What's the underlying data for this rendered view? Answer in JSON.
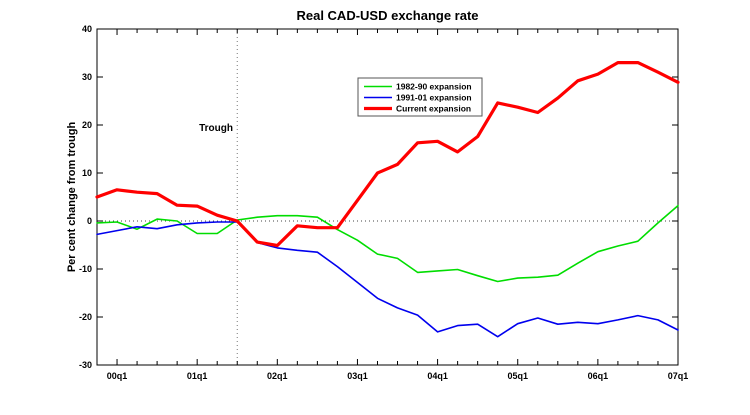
{
  "title": "Real CAD-USD exchange rate",
  "ylabel": "Per cent change from trough",
  "annotations": {
    "trough_label": "Trough",
    "trough_x": "01q3",
    "zero_line": 0
  },
  "colors": {
    "axis": "#000000",
    "background": "#ffffff",
    "green_series": "#00dd00",
    "blue_series": "#0000ee",
    "red_series": "#ff0000",
    "dotted_h": "#444444",
    "dotted_v": "#777777",
    "legend_border": "#555555"
  },
  "legend": {
    "labels": [
      "1982-90 expansion",
      "1991-01 expansion",
      "Current expansion"
    ]
  },
  "chart_data": {
    "type": "line",
    "title": "Real CAD-USD exchange rate",
    "xlabel": "",
    "ylabel": "Per cent change from trough",
    "ylim": [
      -30,
      40
    ],
    "y_ticks": [
      40,
      30,
      20,
      10,
      0,
      -10,
      -20,
      -30
    ],
    "x": [
      "99q4",
      "00q1",
      "00q2",
      "00q3",
      "00q4",
      "01q1",
      "01q2",
      "01q3",
      "01q4",
      "02q1",
      "02q2",
      "02q3",
      "02q4",
      "03q1",
      "03q2",
      "03q3",
      "03q4",
      "04q1",
      "04q2",
      "04q3",
      "04q4",
      "05q1",
      "05q2",
      "05q3",
      "05q4",
      "06q1",
      "06q2",
      "06q3",
      "06q4",
      "07q1"
    ],
    "x_tick_labels": [
      "00q1",
      "01q1",
      "02q1",
      "03q1",
      "04q1",
      "05q1",
      "06q1",
      "07q1"
    ],
    "x_tick_indices": [
      1,
      5,
      9,
      13,
      17,
      21,
      25,
      29
    ],
    "grid": "off",
    "legend_position": "upper-center-left",
    "trough_index": 7,
    "series": [
      {
        "name": "1982-90 expansion",
        "color": "#00dd00",
        "width": 1.6,
        "values": [
          -0.4,
          -0.2,
          -1.7,
          0.4,
          0.0,
          -2.6,
          -2.6,
          0.2,
          0.8,
          1.1,
          1.1,
          0.8,
          -1.8,
          -4.0,
          -6.9,
          -7.8,
          -10.7,
          -10.4,
          -10.1,
          -11.4,
          -12.6,
          -11.9,
          -11.7,
          -11.3,
          -8.8,
          -6.4,
          -5.2,
          -4.2,
          -0.4,
          3.2
        ]
      },
      {
        "name": "1991-01 expansion",
        "color": "#0000ee",
        "width": 1.6,
        "values": [
          -2.8,
          -2.0,
          -1.2,
          -1.6,
          -0.8,
          -0.4,
          -0.2,
          -0.2,
          -4.5,
          -5.6,
          -6.1,
          -6.5,
          -9.5,
          -12.8,
          -16.1,
          -18.1,
          -19.6,
          -23.1,
          -21.8,
          -21.5,
          -24.1,
          -21.4,
          -20.2,
          -21.5,
          -21.1,
          -21.4,
          -20.6,
          -19.7,
          -20.6,
          -22.7
        ]
      },
      {
        "name": "Current expansion",
        "color": "#ff0000",
        "width": 3.2,
        "values": [
          5.0,
          6.5,
          6.0,
          5.7,
          3.3,
          3.1,
          1.2,
          0.0,
          -4.4,
          -5.1,
          -1.0,
          -1.4,
          -1.4,
          4.3,
          10.0,
          11.8,
          16.3,
          16.6,
          14.4,
          17.6,
          24.6,
          23.7,
          22.6,
          25.6,
          29.2,
          30.6,
          33.0,
          33.0,
          31.0,
          28.9
        ]
      }
    ]
  }
}
